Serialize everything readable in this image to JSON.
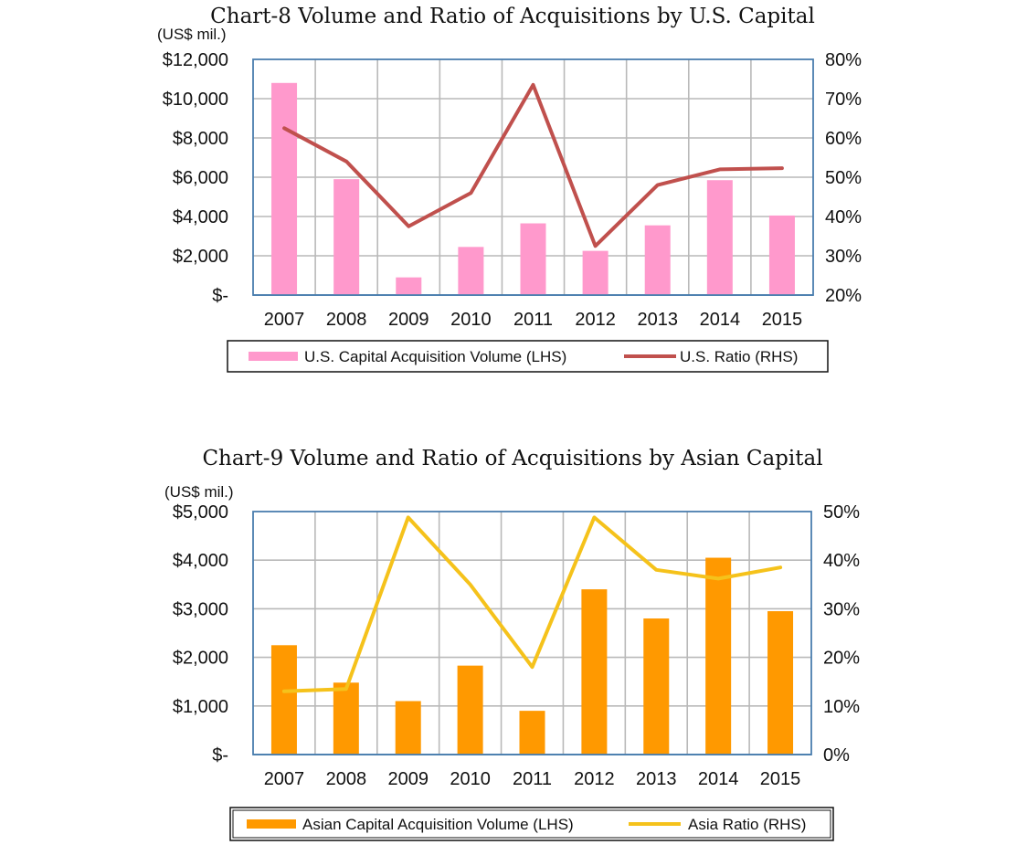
{
  "chart_data": [
    {
      "type": "bar+line",
      "title": "Chart-8 Volume and Ratio of Acquisitions by U.S. Capital",
      "unit_label": "(US$ mil.)",
      "categories": [
        "2007",
        "2008",
        "2009",
        "2010",
        "2011",
        "2012",
        "2013",
        "2014",
        "2015"
      ],
      "y_left": {
        "lim": [
          0,
          12000
        ],
        "ticks": [
          "$-",
          "$2,000",
          "$4,000",
          "$6,000",
          "$8,000",
          "$10,000",
          "$12,000"
        ]
      },
      "y_right": {
        "lim": [
          20,
          80
        ],
        "ticks": [
          "20%",
          "30%",
          "40%",
          "50%",
          "60%",
          "70%",
          "80%"
        ]
      },
      "series": [
        {
          "name": "U.S. Capital Acquisition Volume (LHS)",
          "kind": "bar",
          "axis": "left",
          "color": "#ff99cc",
          "values": [
            10800,
            5900,
            900,
            2450,
            3650,
            2250,
            3550,
            5850,
            4050
          ]
        },
        {
          "name": "U.S. Ratio (RHS)",
          "kind": "line",
          "axis": "right",
          "color": "#c0504d",
          "values": [
            62.5,
            54,
            37.5,
            46,
            73.5,
            32.5,
            48,
            52,
            52.3
          ]
        }
      ],
      "grid": true,
      "legend": "bottom"
    },
    {
      "type": "bar+line",
      "title": "Chart-9 Volume and Ratio of Acquisitions by Asian Capital",
      "unit_label": "(US$ mil.)",
      "categories": [
        "2007",
        "2008",
        "2009",
        "2010",
        "2011",
        "2012",
        "2013",
        "2014",
        "2015"
      ],
      "y_left": {
        "lim": [
          0,
          5000
        ],
        "ticks": [
          "$-",
          "$1,000",
          "$2,000",
          "$3,000",
          "$4,000",
          "$5,000"
        ]
      },
      "y_right": {
        "lim": [
          0,
          50
        ],
        "ticks": [
          "0%",
          "10%",
          "20%",
          "30%",
          "40%",
          "50%"
        ]
      },
      "series": [
        {
          "name": "Asian Capital Acquisition Volume (LHS)",
          "kind": "bar",
          "axis": "left",
          "color": "#ff9900",
          "values": [
            2250,
            1480,
            1100,
            1830,
            900,
            3400,
            2800,
            4050,
            2950
          ]
        },
        {
          "name": "Asia Ratio (RHS)",
          "kind": "line",
          "axis": "right",
          "color": "#f5c21b",
          "values": [
            13,
            13.5,
            48.8,
            35,
            18,
            48.8,
            38,
            36.2,
            38.5
          ]
        }
      ],
      "grid": true,
      "legend": "bottom"
    }
  ]
}
